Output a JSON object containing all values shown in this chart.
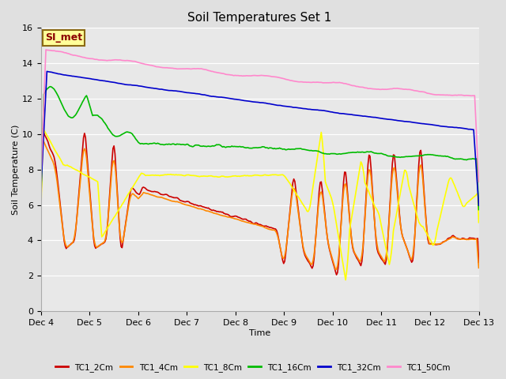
{
  "title": "Soil Temperatures Set 1",
  "xlabel": "Time",
  "ylabel": "Soil Temperature (C)",
  "ylim": [
    0,
    16
  ],
  "yticks": [
    0,
    2,
    4,
    6,
    8,
    10,
    12,
    14,
    16
  ],
  "xtick_labels": [
    "Dec 4",
    "Dec 5",
    "Dec 6",
    "Dec 7",
    "Dec 8",
    "Dec 9",
    "Dec 10",
    "Dec 11",
    "Dec 12",
    "Dec 13"
  ],
  "background_color": "#e0e0e0",
  "plot_bg_color": "#e8e8e8",
  "annotation_text": "SI_met",
  "annotation_bg": "#ffff99",
  "annotation_border": "#8b6914",
  "series": {
    "TC1_2Cm": {
      "color": "#cc0000",
      "lw": 1.2
    },
    "TC1_4Cm": {
      "color": "#ff8800",
      "lw": 1.2
    },
    "TC1_8Cm": {
      "color": "#ffff00",
      "lw": 1.2
    },
    "TC1_16Cm": {
      "color": "#00bb00",
      "lw": 1.2
    },
    "TC1_32Cm": {
      "color": "#0000cc",
      "lw": 1.2
    },
    "TC1_50Cm": {
      "color": "#ff88cc",
      "lw": 1.2
    }
  },
  "figsize": [
    6.4,
    4.8
  ],
  "dpi": 100
}
